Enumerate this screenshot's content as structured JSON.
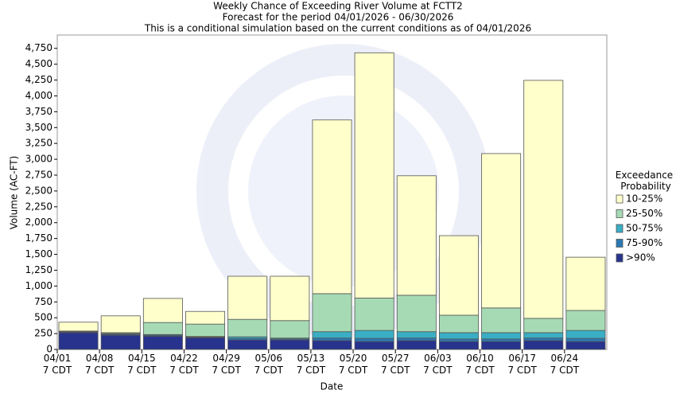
{
  "chart_data": {
    "type": "stacked_bar",
    "title": "Weekly Chance of Exceeding River Volume at FCTT2",
    "subtitle": "Forecast for the period 04/01/2026 - 06/30/2026",
    "caption": "This is a conditional simulation based on the current conditions as of 04/01/2026",
    "x_label": "Date",
    "y_label": "Volume (AC-FT)",
    "legend_title": "Exceedance Probability",
    "legend_position": "right",
    "categories": [
      "04/01 7 CDT",
      "04/08 7 CDT",
      "04/15 7 CDT",
      "04/22 7 CDT",
      "04/29 7 CDT",
      "05/06 7 CDT",
      "05/13 7 CDT",
      "05/20 7 CDT",
      "05/27 7 CDT",
      "06/03 7 CDT",
      "06/10 7 CDT",
      "06/17 7 CDT",
      "06/24 7 CDT"
    ],
    "series": [
      {
        "name": ">90%",
        "color": "#27338c",
        "values": [
          265,
          225,
          210,
          185,
          150,
          150,
          140,
          125,
          140,
          125,
          125,
          140,
          125
        ]
      },
      {
        "name": "75-90%",
        "color": "#2c78b3",
        "values": [
          10,
          15,
          15,
          10,
          25,
          15,
          40,
          50,
          40,
          40,
          40,
          40,
          50
        ]
      },
      {
        "name": "50-75%",
        "color": "#3aaec4",
        "values": [
          5,
          10,
          10,
          10,
          25,
          15,
          100,
          125,
          100,
          100,
          100,
          85,
          125
        ]
      },
      {
        "name": "25-50%",
        "color": "#a6dab4",
        "values": [
          10,
          15,
          190,
          195,
          275,
          275,
          600,
          510,
          575,
          275,
          390,
          225,
          315
        ]
      },
      {
        "name": "10-25%",
        "color": "#ffffcc",
        "values": [
          140,
          265,
          380,
          200,
          680,
          700,
          2740,
          3870,
          1885,
          1255,
          2435,
          3755,
          840
        ]
      }
    ],
    "ylim": [
      0,
      4960
    ],
    "yticks": [
      0,
      250,
      500,
      750,
      {
        "value": 1000,
        "label": "1,000"
      },
      {
        "value": 1250,
        "label": "1,250"
      },
      {
        "value": 1500,
        "label": "1,500"
      },
      {
        "value": 1750,
        "label": "1,750"
      },
      {
        "value": 2000,
        "label": "2,000"
      },
      {
        "value": 2250,
        "label": "2,250"
      },
      {
        "value": 2500,
        "label": "2,500"
      },
      {
        "value": 2750,
        "label": "2,750"
      },
      {
        "value": 3000,
        "label": "3,000"
      },
      {
        "value": 3250,
        "label": "3,250"
      },
      {
        "value": 3500,
        "label": "3,500"
      },
      {
        "value": 3750,
        "label": "3,750"
      },
      {
        "value": 4000,
        "label": "4,000"
      },
      {
        "value": 4250,
        "label": "4,250"
      },
      {
        "value": 4500,
        "label": "4,500"
      },
      {
        "value": 4750,
        "label": "4,750"
      }
    ],
    "grid": false
  }
}
